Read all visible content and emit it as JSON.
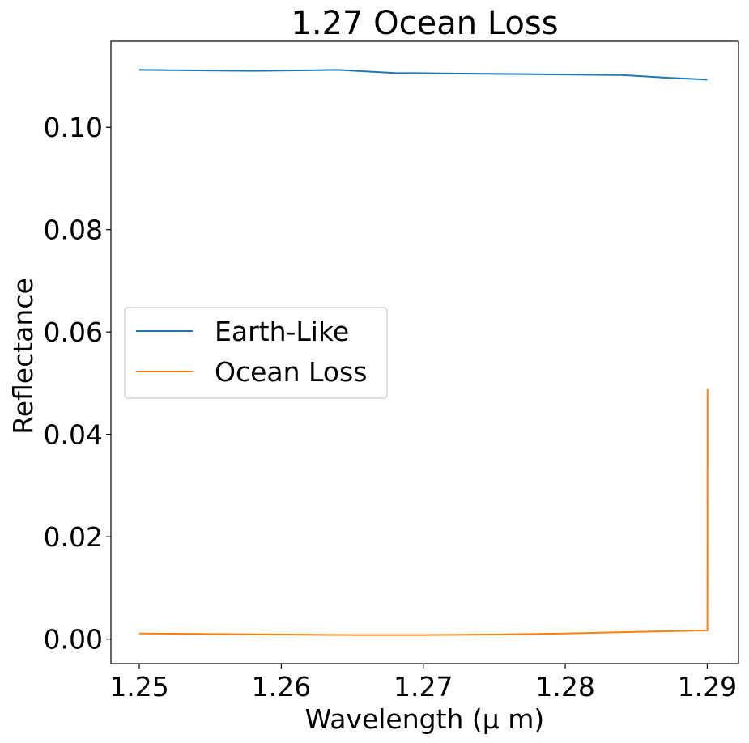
{
  "chart_data": {
    "type": "line",
    "title": "1.27 Ocean Loss",
    "xlabel": "Wavelength (μ m)",
    "ylabel": "Reflectance",
    "xlim": [
      1.248,
      1.2922
    ],
    "ylim": [
      -0.0048,
      0.1168
    ],
    "xticks": [
      {
        "value": 1.25,
        "label": "1.25"
      },
      {
        "value": 1.26,
        "label": "1.26"
      },
      {
        "value": 1.27,
        "label": "1.27"
      },
      {
        "value": 1.28,
        "label": "1.28"
      },
      {
        "value": 1.29,
        "label": "1.29"
      }
    ],
    "yticks": [
      {
        "value": 0.0,
        "label": "0.00"
      },
      {
        "value": 0.02,
        "label": "0.02"
      },
      {
        "value": 0.04,
        "label": "0.04"
      },
      {
        "value": 0.06,
        "label": "0.06"
      },
      {
        "value": 0.08,
        "label": "0.08"
      },
      {
        "value": 0.1,
        "label": "0.10"
      }
    ],
    "grid": false,
    "legend_position": "center-left",
    "series": [
      {
        "name": "Earth-Like",
        "color": "#1f77b4",
        "x": [
          1.25,
          1.254,
          1.258,
          1.264,
          1.268,
          1.272,
          1.276,
          1.28,
          1.284,
          1.287,
          1.29
        ],
        "y": [
          0.1112,
          0.1111,
          0.111,
          0.1112,
          0.1106,
          0.1105,
          0.1104,
          0.1103,
          0.1102,
          0.1097,
          0.1093
        ]
      },
      {
        "name": "Ocean Loss",
        "color": "#ff7f0e",
        "x": [
          1.25,
          1.255,
          1.26,
          1.265,
          1.27,
          1.275,
          1.28,
          1.285,
          1.29,
          1.29001,
          1.29002
        ],
        "y": [
          0.0011,
          0.001,
          0.0009,
          0.0008,
          0.0008,
          0.0009,
          0.0011,
          0.0014,
          0.0017,
          0.0017,
          0.0488
        ]
      }
    ]
  }
}
